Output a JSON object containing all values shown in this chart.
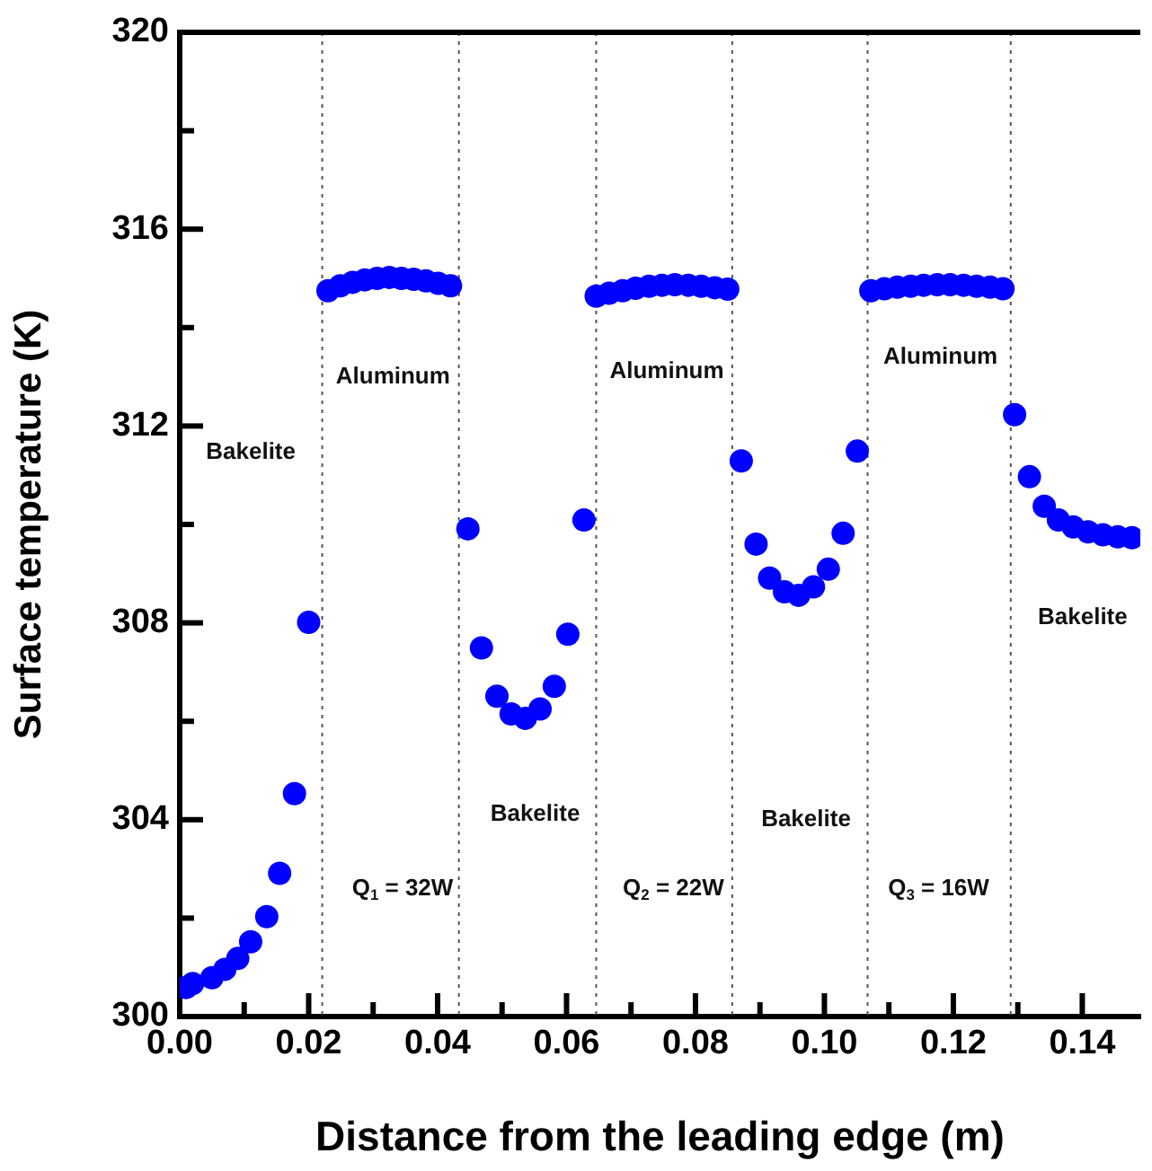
{
  "chart_data": {
    "type": "scatter",
    "xlabel": "Distance from the leading edge (m)",
    "ylabel": "Surface temperature (K)",
    "xlim": [
      0,
      0.149
    ],
    "ylim": [
      300,
      320
    ],
    "xticks": [
      {
        "value": 0,
        "label": "0.00"
      },
      {
        "value": 0.01,
        "label": null
      },
      {
        "value": 0.02,
        "label": "0.02"
      },
      {
        "value": 0.03,
        "label": null
      },
      {
        "value": 0.04,
        "label": "0.04"
      },
      {
        "value": 0.05,
        "label": null
      },
      {
        "value": 0.06,
        "label": "0.06"
      },
      {
        "value": 0.07,
        "label": null
      },
      {
        "value": 0.08,
        "label": "0.08"
      },
      {
        "value": 0.09,
        "label": null
      },
      {
        "value": 0.1,
        "label": "0.10"
      },
      {
        "value": 0.11,
        "label": null
      },
      {
        "value": 0.12,
        "label": "0.12"
      },
      {
        "value": 0.13,
        "label": null
      },
      {
        "value": 0.14,
        "label": "0.14"
      }
    ],
    "yticks": [
      300,
      {
        "value": 302,
        "label": null
      },
      304,
      {
        "value": 306,
        "label": null
      },
      308,
      {
        "value": 310,
        "label": null
      },
      312,
      {
        "value": 314,
        "label": null
      },
      316,
      {
        "value": 318,
        "label": null
      },
      320
    ],
    "series": [
      {
        "color": "#0000ff",
        "x": [
          0.001,
          0.002,
          0.005,
          0.007,
          0.009,
          0.011,
          0.0135,
          0.0155,
          0.0178,
          0.02,
          0.023,
          0.0249,
          0.0268,
          0.0287,
          0.0306,
          0.0325,
          0.0344,
          0.0363,
          0.0382,
          0.0401,
          0.042,
          0.0447,
          0.0468,
          0.0492,
          0.0514,
          0.0536,
          0.0559,
          0.0581,
          0.0602,
          0.0627,
          0.0646,
          0.0666,
          0.0687,
          0.0707,
          0.0728,
          0.0748,
          0.0768,
          0.0789,
          0.0809,
          0.083,
          0.085,
          0.0871,
          0.0894,
          0.0915,
          0.0938,
          0.096,
          0.0983,
          0.1006,
          0.1029,
          0.1051,
          0.1072,
          0.1093,
          0.1113,
          0.1134,
          0.1154,
          0.1175,
          0.1195,
          0.1216,
          0.1236,
          0.1257,
          0.1277,
          0.1295,
          0.1318,
          0.1341,
          0.1363,
          0.1386,
          0.1409,
          0.1432,
          0.1455,
          0.1477
        ],
        "values": [
          300.59,
          300.67,
          300.79,
          300.96,
          301.18,
          301.52,
          302.03,
          302.91,
          304.53,
          308.01,
          314.75,
          314.85,
          314.92,
          314.97,
          315.0,
          315.02,
          315.0,
          314.98,
          314.95,
          314.9,
          314.85,
          309.91,
          307.49,
          306.51,
          306.15,
          306.06,
          306.25,
          306.71,
          307.77,
          310.09,
          314.64,
          314.7,
          314.75,
          314.8,
          314.84,
          314.86,
          314.87,
          314.86,
          314.84,
          314.81,
          314.78,
          311.29,
          309.6,
          308.91,
          308.63,
          308.56,
          308.73,
          309.09,
          309.82,
          311.49,
          314.75,
          314.79,
          314.82,
          314.84,
          314.86,
          314.87,
          314.87,
          314.86,
          314.84,
          314.82,
          314.79,
          312.23,
          310.97,
          310.37,
          310.09,
          309.95,
          309.85,
          309.79,
          309.75,
          309.73
        ]
      }
    ],
    "marker": "circle",
    "grid": false,
    "legend": false,
    "ref_lines": [
      {
        "axis": "x",
        "value": 0.0221,
        "color": "#555555",
        "line_style": "dotted"
      },
      {
        "axis": "x",
        "value": 0.0433,
        "color": "#555555",
        "line_style": "dotted"
      },
      {
        "axis": "x",
        "value": 0.0646,
        "color": "#555555",
        "line_style": "dotted"
      },
      {
        "axis": "x",
        "value": 0.0857,
        "color": "#555555",
        "line_style": "dotted"
      },
      {
        "axis": "x",
        "value": 0.1067,
        "color": "#555555",
        "line_style": "dotted"
      },
      {
        "axis": "x",
        "value": 0.1289,
        "color": "#555555",
        "line_style": "dotted"
      }
    ],
    "annotations": [
      "Bakelite",
      "Aluminum",
      "Bakelite",
      "Aluminum",
      "Bakelite",
      "Aluminum",
      "Bakelite",
      "Q$_{1}$ = 32W",
      "Q$_{2}$ = 22W",
      "Q$_{3}$ = 16W"
    ]
  }
}
